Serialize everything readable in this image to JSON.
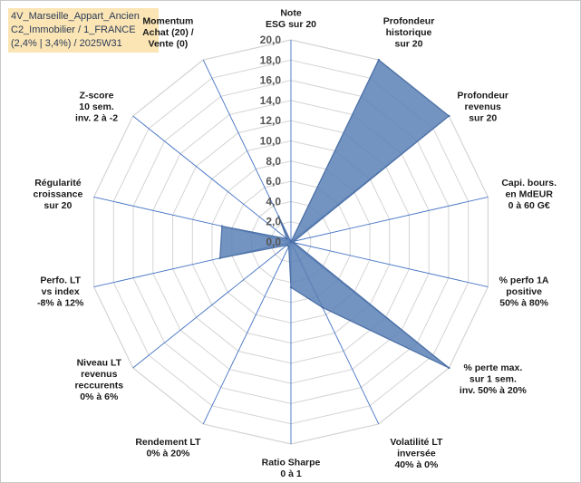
{
  "header": {
    "line1": "4V_Marseille_Appart_Ancien",
    "line2": "C2_Immobilier / 1_FRANCE",
    "line3": "(2,4% | 3,4%) / 2025W31"
  },
  "chart_data": {
    "type": "radar",
    "rlim": [
      0,
      20
    ],
    "ticks": [
      "0,0",
      "2,0",
      "4,0",
      "6,0",
      "8,0",
      "10,0",
      "12,0",
      "14,0",
      "16,0",
      "18,0",
      "20,0"
    ],
    "axes": [
      {
        "label": [
          "Note",
          "ESG sur 20"
        ],
        "value": 0
      },
      {
        "label": [
          "Profondeur",
          "historique",
          "sur 20"
        ],
        "value": 20
      },
      {
        "label": [
          "Profondeur",
          "revenus",
          "sur 20"
        ],
        "value": 20
      },
      {
        "label": [
          "Capi. bours.",
          "en MdEUR",
          "0 à 60 G€"
        ],
        "value": 0.3
      },
      {
        "label": [
          "% perfo 1A",
          "positive",
          "50% à 80%"
        ],
        "value": 0.3
      },
      {
        "label": [
          "% perte max.",
          "sur 1 sem.",
          "inv. 50% à 20%"
        ],
        "value": 20
      },
      {
        "label": [
          "Volatilité LT",
          "inversée",
          "40% à 0%"
        ],
        "value": 7.2
      },
      {
        "label": [
          "Ratio Sharpe",
          "0 à 1"
        ],
        "value": 4.5
      },
      {
        "label": [
          "Rendement LT",
          "0% à 20%"
        ],
        "value": 0.5
      },
      {
        "label": [
          "Niveau LT",
          "revenus",
          "reccurents",
          "0% à 6%"
        ],
        "value": 0.5
      },
      {
        "label": [
          "Perfo. LT",
          "vs index",
          "-8% à 12%"
        ],
        "value": 7.2
      },
      {
        "label": [
          "Régularité",
          "croissance",
          "sur 20"
        ],
        "value": 7
      },
      {
        "label": [
          "Z-score",
          "10 sem.",
          "inv. 2 à -2"
        ],
        "value": 0.5
      },
      {
        "label": [
          "Momentum",
          "Achat (20) /",
          "Vente (0)"
        ],
        "value": 2.8
      }
    ],
    "colors": {
      "fill": "#5b80b5",
      "stroke": "#4a6fa5",
      "grid": "#d4d4d4",
      "spoke": "#4472c4"
    }
  }
}
